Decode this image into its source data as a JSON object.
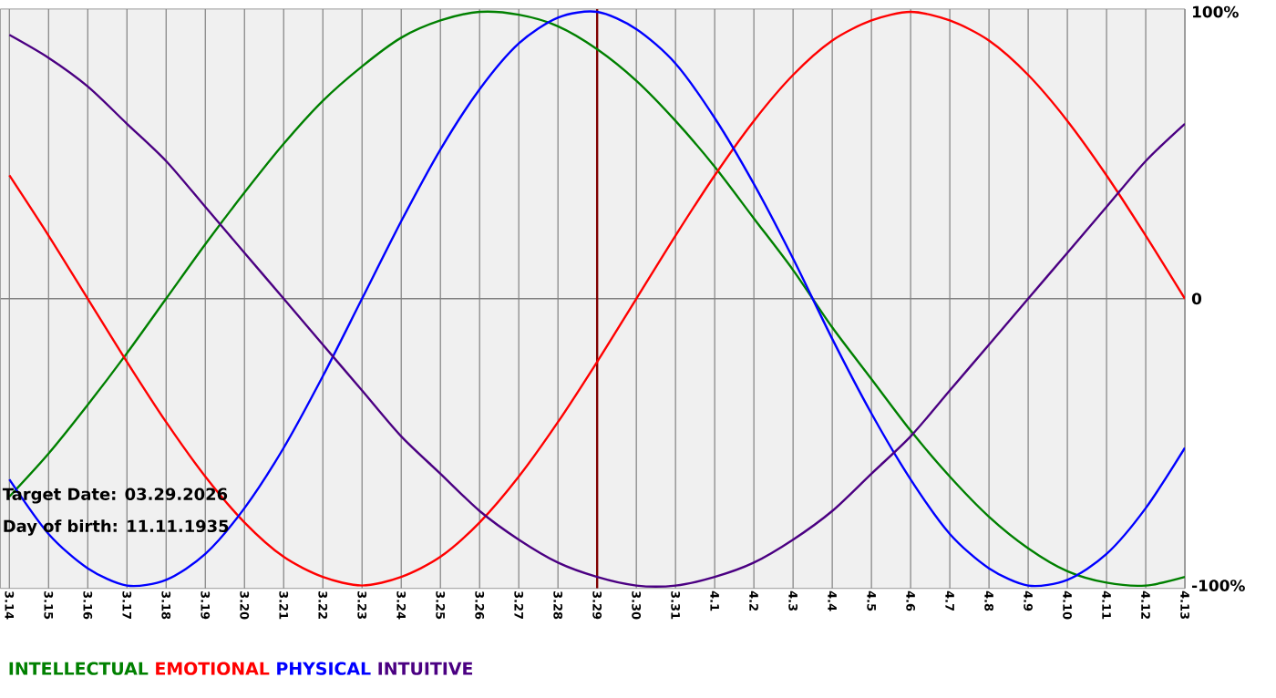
{
  "chart_data": {
    "type": "line",
    "categories": [
      "3.14",
      "3.15",
      "3.16",
      "3.17",
      "3.18",
      "3.19",
      "3.20",
      "3.21",
      "3.22",
      "3.23",
      "3.24",
      "3.25",
      "3.26",
      "3.27",
      "3.28",
      "3.29",
      "3.30",
      "3.31",
      "4.1",
      "4.2",
      "4.3",
      "4.4",
      "4.5",
      "4.6",
      "4.7",
      "4.8",
      "4.9",
      "4.10",
      "4.11",
      "4.12",
      "4.13"
    ],
    "series": [
      {
        "name": "INTELLECTUAL",
        "color": "#008000",
        "values": [
          -69,
          -54,
          -37,
          -19,
          0,
          19,
          37,
          54,
          69,
          81,
          91,
          97,
          100,
          99,
          95,
          87,
          76,
          62,
          46,
          28,
          10,
          -10,
          -28,
          -46,
          -62,
          -76,
          -87,
          -95,
          -99,
          -100,
          -97
        ]
      },
      {
        "name": "EMOTIONAL",
        "color": "#ff0000",
        "values": [
          43,
          22,
          0,
          -22,
          -43,
          -62,
          -78,
          -90,
          -97,
          -100,
          -97,
          -90,
          -78,
          -62,
          -43,
          -22,
          0,
          22,
          43,
          62,
          78,
          90,
          97,
          100,
          97,
          90,
          78,
          62,
          43,
          22,
          0
        ]
      },
      {
        "name": "PHYSICAL",
        "color": "#0000ff",
        "values": [
          -63,
          -82,
          -94,
          -100,
          -98,
          -89,
          -73,
          -52,
          -27,
          0,
          27,
          52,
          73,
          89,
          98,
          100,
          94,
          82,
          63,
          40,
          14,
          -14,
          -40,
          -63,
          -82,
          -94,
          -100,
          -98,
          -89,
          -73,
          -52
        ]
      },
      {
        "name": "INTUITIVE",
        "color": "#4b0082",
        "values": [
          92,
          84,
          74,
          61,
          48,
          32,
          16,
          0,
          -16,
          -32,
          -48,
          -61,
          -74,
          -84,
          -92,
          -97,
          -100,
          -100,
          -97,
          -92,
          -84,
          -74,
          -61,
          -48,
          -32,
          -16,
          0,
          16,
          32,
          48,
          61
        ]
      }
    ],
    "ylim": [
      -101,
      101
    ],
    "yticks": [
      {
        "value": -100,
        "label": "-100%"
      },
      0,
      {
        "value": 100,
        "label": "100%"
      }
    ],
    "grid": "x",
    "legend": "bottom",
    "line_style": "solid",
    "ref_lines": [
      {
        "axis": "y",
        "value": 0,
        "color": "#808080"
      },
      {
        "axis": "x",
        "value": "3.29",
        "color": "#800000"
      }
    ],
    "annotations": [
      "Target Date: 03.29.2026",
      "Day of birth: 11.11.1935"
    ]
  }
}
